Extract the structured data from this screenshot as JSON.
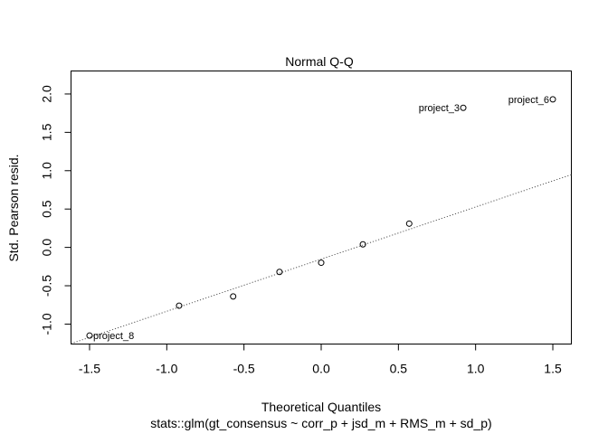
{
  "chart_data": {
    "type": "scatter",
    "title": "Normal Q-Q",
    "xlabel": "Theoretical Quantiles",
    "ylabel": "Std. Pearson resid.",
    "caption": "stats::glm(gt_consensus ~ corr_p + jsd_m + RMS_m + sd_p)",
    "xlim": [
      -1.62,
      1.62
    ],
    "ylim": [
      -1.26,
      2.3
    ],
    "x_ticks": [
      -1.5,
      -1.0,
      -0.5,
      0.0,
      0.5,
      1.0,
      1.5
    ],
    "x_tick_labels": [
      "-1.5",
      "-1.0",
      "-0.5",
      "0.0",
      "0.5",
      "1.0",
      "1.5"
    ],
    "y_ticks": [
      -1.0,
      -0.5,
      0.0,
      0.5,
      1.0,
      1.5,
      2.0
    ],
    "y_tick_labels": [
      "-1.0",
      "-0.5",
      "0.0",
      "0.5",
      "1.0",
      "1.5",
      "2.0"
    ],
    "grid": false,
    "points": [
      {
        "x": -1.5,
        "y": -1.15,
        "label": "project_8"
      },
      {
        "x": -0.92,
        "y": -0.76,
        "label": ""
      },
      {
        "x": -0.57,
        "y": -0.64,
        "label": ""
      },
      {
        "x": -0.27,
        "y": -0.32,
        "label": ""
      },
      {
        "x": 0.0,
        "y": -0.2,
        "label": ""
      },
      {
        "x": 0.27,
        "y": 0.04,
        "label": ""
      },
      {
        "x": 0.57,
        "y": 0.31,
        "label": ""
      },
      {
        "x": 0.92,
        "y": 1.82,
        "label": "project_3"
      },
      {
        "x": 1.5,
        "y": 1.93,
        "label": "project_6"
      }
    ],
    "reference_line": {
      "intercept": -0.153,
      "slope": 0.68,
      "style": "dotted"
    }
  }
}
